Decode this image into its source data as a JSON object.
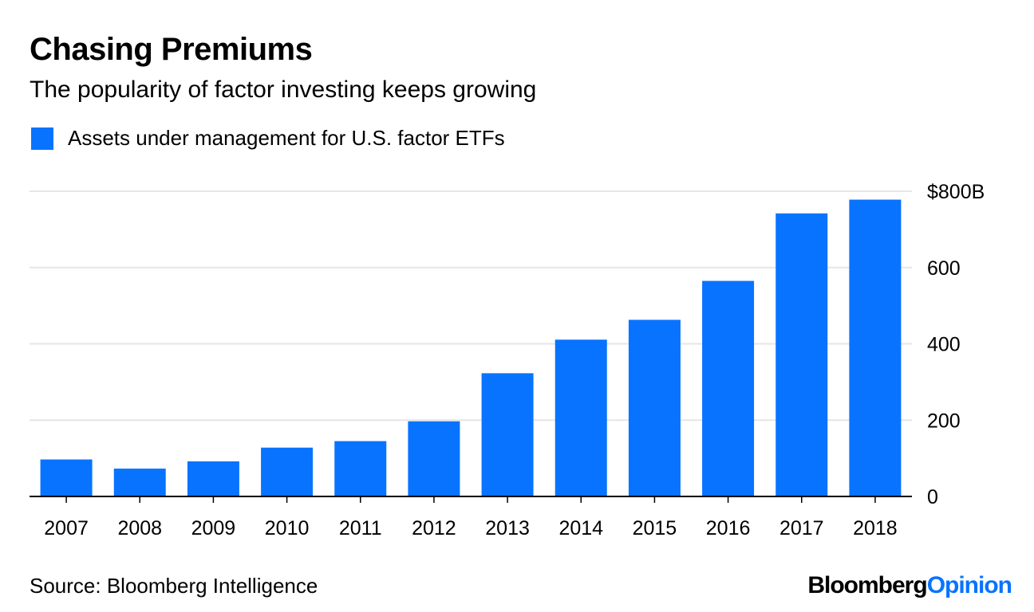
{
  "header": {
    "title": "Chasing Premiums",
    "subtitle": "The popularity of factor investing keeps growing"
  },
  "footer": {
    "source": "Source: Bloomberg Intelligence",
    "brand_part1": "Bloomberg",
    "brand_part2": "Opinion"
  },
  "colors": {
    "bar": "#0873ff",
    "gridline": "#e6e6e6",
    "axis": "#000000",
    "brand_accent": "#0873ff"
  },
  "chart_data": {
    "type": "bar",
    "title": "Chasing Premiums",
    "subtitle": "The popularity of factor investing keeps growing",
    "categories": [
      "2007",
      "2008",
      "2009",
      "2010",
      "2011",
      "2012",
      "2013",
      "2014",
      "2015",
      "2016",
      "2017",
      "2018"
    ],
    "series": [
      {
        "name": "Assets under management for U.S. factor ETFs",
        "values": [
          97,
          73,
          92,
          128,
          145,
          197,
          323,
          411,
          463,
          565,
          742,
          778
        ]
      }
    ],
    "ylim": [
      0,
      800
    ],
    "yticks": [
      0,
      200,
      400,
      600,
      800
    ],
    "ytick_labels": [
      "0",
      "200",
      "400",
      "600",
      "$800B"
    ],
    "y_axis_side": "right",
    "grid": true,
    "legend_position": "top-left"
  }
}
